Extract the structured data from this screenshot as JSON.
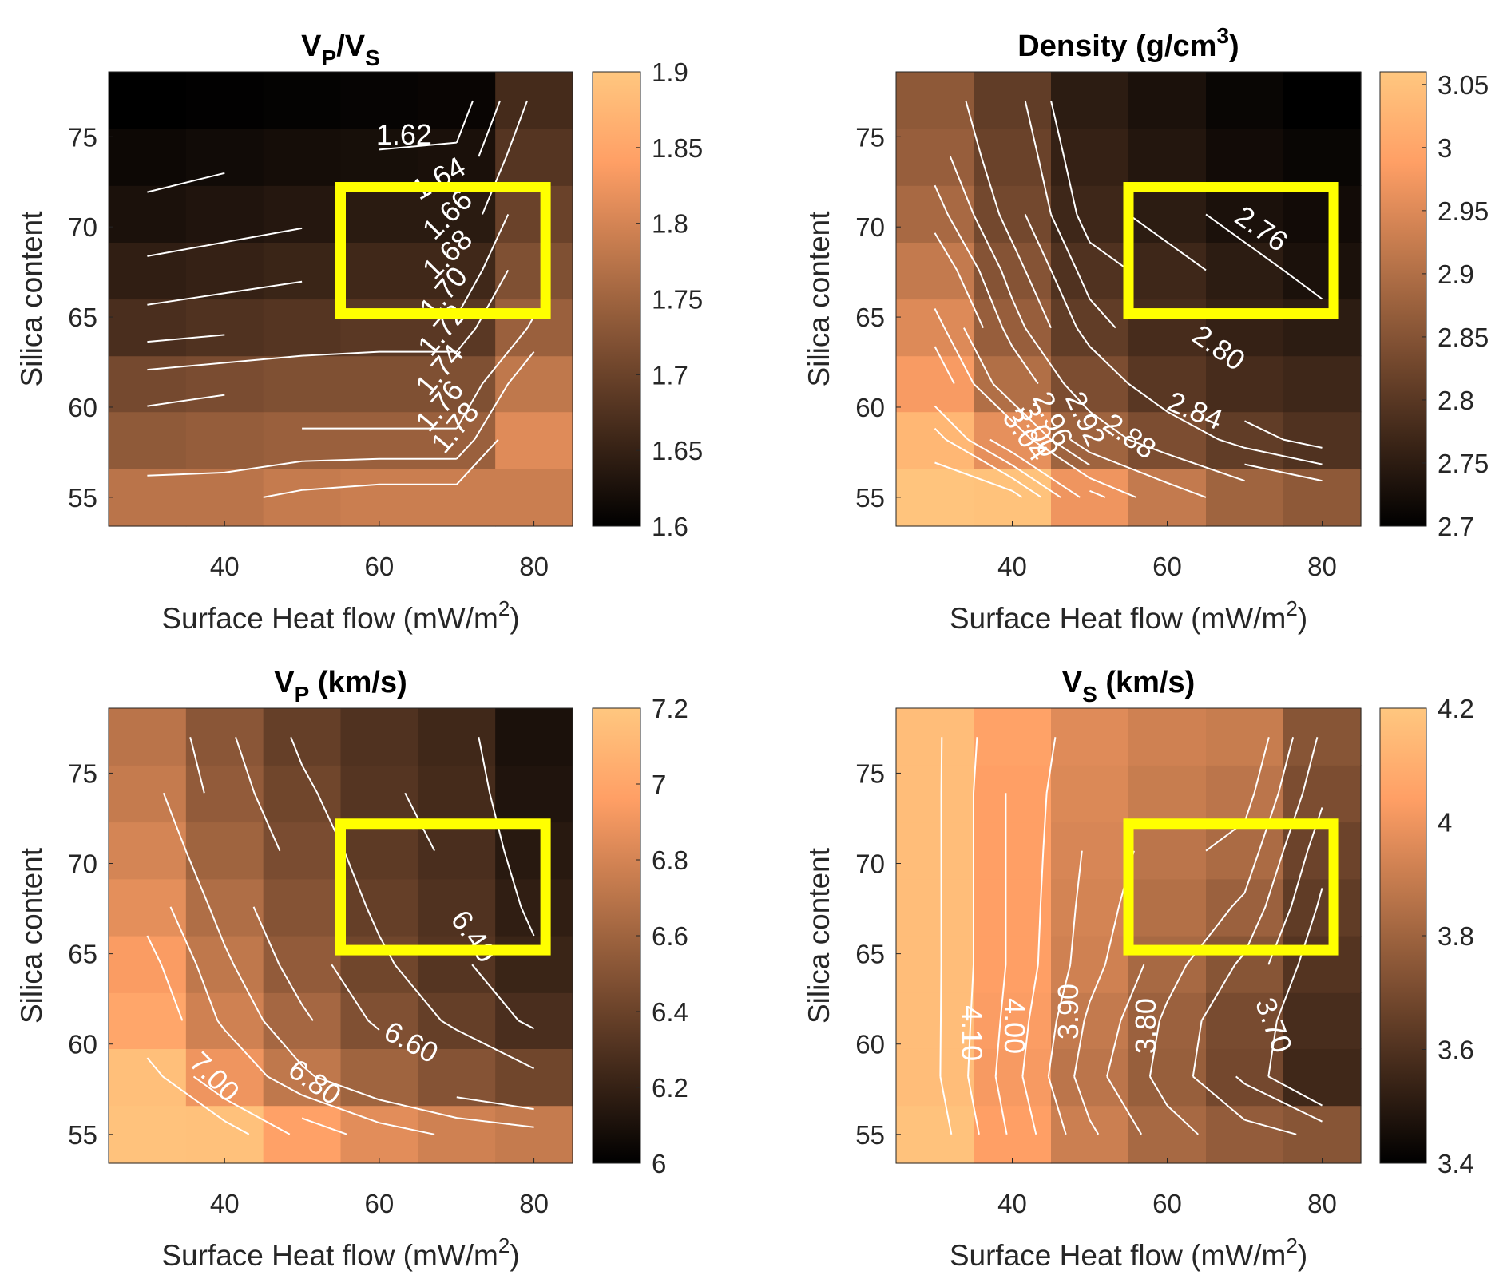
{
  "figure": {
    "colormap": "copper",
    "highlight_color": "#FFFF00",
    "contour_color": "#FFFFFF"
  },
  "chart_data": [
    {
      "id": "vpvs",
      "type": "heatmap",
      "title": "V",
      "title_parts": [
        {
          "t": "V"
        },
        {
          "t": "P",
          "sub": true
        },
        {
          "t": "/V"
        },
        {
          "t": "S",
          "sub": true
        }
      ],
      "xlabel": "Surface Heat flow (mW/m",
      "xlabel_sup": "2",
      "xlabel_end": ")",
      "ylabel": "Silica content",
      "x": [
        30,
        40,
        50,
        60,
        70,
        80
      ],
      "y": [
        55,
        58.2,
        61.3,
        64.4,
        67.6,
        70.7,
        73.9,
        77
      ],
      "xlim": [
        25,
        85
      ],
      "ylim": [
        53.4,
        78.6
      ],
      "xticks": [
        40,
        60,
        80
      ],
      "yticks": [
        55,
        60,
        65,
        70,
        75
      ],
      "clim": [
        1.6,
        1.9
      ],
      "cticks": [
        "1.6",
        "1.65",
        "1.7",
        "1.75",
        "1.8",
        "1.85",
        "1.9"
      ],
      "cticks_values": [
        1.6,
        1.65,
        1.7,
        1.75,
        1.8,
        1.85,
        1.9
      ],
      "values": [
        [
          1.775,
          1.775,
          1.785,
          1.79,
          1.79,
          1.79
        ],
        [
          1.735,
          1.74,
          1.745,
          1.745,
          1.745,
          1.81
        ],
        [
          1.71,
          1.715,
          1.72,
          1.72,
          1.72,
          1.78
        ],
        [
          1.67,
          1.675,
          1.68,
          1.685,
          1.685,
          1.745
        ],
        [
          1.645,
          1.65,
          1.655,
          1.66,
          1.66,
          1.72
        ],
        [
          1.625,
          1.63,
          1.635,
          1.64,
          1.64,
          1.7
        ],
        [
          1.612,
          1.616,
          1.62,
          1.622,
          1.624,
          1.68
        ],
        [
          1.6,
          1.602,
          1.604,
          1.606,
          1.608,
          1.665
        ]
      ],
      "contour_levels": [
        1.62,
        1.64,
        1.66,
        1.68,
        1.7,
        1.72,
        1.74,
        1.76,
        1.78
      ],
      "contour_labels": [
        {
          "text": "1.62",
          "x": 63.2,
          "y": 75.0,
          "angle": 0
        },
        {
          "text": "1.64",
          "x": 67.8,
          "y": 72.6,
          "angle": -30
        },
        {
          "text": "1.66",
          "x": 69.0,
          "y": 70.6,
          "angle": -45
        },
        {
          "text": "1.68",
          "x": 69.0,
          "y": 68.4,
          "angle": -45
        },
        {
          "text": "1.70",
          "x": 68.5,
          "y": 66.3,
          "angle": -50
        },
        {
          "text": "1.72",
          "x": 68.3,
          "y": 64.2,
          "angle": -50
        },
        {
          "text": "1.74",
          "x": 68.0,
          "y": 62.0,
          "angle": -50
        },
        {
          "text": "1.76",
          "x": 68.0,
          "y": 60.0,
          "angle": -50
        },
        {
          "text": "1.78",
          "x": 70.0,
          "y": 58.8,
          "angle": -50
        }
      ],
      "highlight_box": {
        "x": [
          55,
          81.5
        ],
        "y": [
          65.2,
          72.2
        ]
      }
    },
    {
      "id": "density",
      "type": "heatmap",
      "title_parts": [
        {
          "t": "Density (g/cm"
        },
        {
          "t": "3",
          "sup": true
        },
        {
          "t": ")"
        }
      ],
      "xlabel": "Surface Heat flow (mW/m",
      "xlabel_sup": "2",
      "xlabel_end": ")",
      "ylabel": "Silica content",
      "x": [
        30,
        40,
        50,
        60,
        70,
        80
      ],
      "y": [
        55,
        58.2,
        61.3,
        64.4,
        67.6,
        70.7,
        73.9,
        77
      ],
      "xlim": [
        25,
        85
      ],
      "ylim": [
        53.4,
        78.6
      ],
      "xticks": [
        40,
        60,
        80
      ],
      "yticks": [
        55,
        60,
        65,
        70,
        75
      ],
      "clim": [
        2.7,
        3.06
      ],
      "cticks": [
        "2.7",
        "2.75",
        "2.8",
        "2.85",
        "2.9",
        "2.95",
        "3",
        "3.05"
      ],
      "cticks_values": [
        2.7,
        2.75,
        2.8,
        2.85,
        2.9,
        2.95,
        3.0,
        3.05
      ],
      "values": [
        [
          3.055,
          3.05,
          2.97,
          2.92,
          2.88,
          2.86
        ],
        [
          3.03,
          2.96,
          2.88,
          2.84,
          2.81,
          2.79
        ],
        [
          2.98,
          2.9,
          2.84,
          2.8,
          2.78,
          2.77
        ],
        [
          2.95,
          2.87,
          2.81,
          2.78,
          2.76,
          2.75
        ],
        [
          2.92,
          2.85,
          2.79,
          2.77,
          2.75,
          2.73
        ],
        [
          2.89,
          2.83,
          2.77,
          2.75,
          2.73,
          2.72
        ],
        [
          2.87,
          2.82,
          2.76,
          2.74,
          2.72,
          2.71
        ],
        [
          2.86,
          2.81,
          2.75,
          2.73,
          2.71,
          2.7
        ]
      ],
      "contour_levels": [
        2.72,
        2.74,
        2.76,
        2.78,
        2.8,
        2.82,
        2.84,
        2.86,
        2.88,
        2.9,
        2.92,
        2.94,
        2.96,
        2.98,
        3.0,
        3.02,
        3.04
      ],
      "contour_labels": [
        {
          "text": "2.76",
          "x": 72.0,
          "y": 69.8,
          "angle": 35
        },
        {
          "text": "2.80",
          "x": 66.5,
          "y": 63.2,
          "angle": 35
        },
        {
          "text": "2.84",
          "x": 63.5,
          "y": 59.7,
          "angle": 22
        },
        {
          "text": "2.88",
          "x": 55.0,
          "y": 58.3,
          "angle": 35
        },
        {
          "text": "2.92",
          "x": 49.2,
          "y": 59.3,
          "angle": 65
        },
        {
          "text": "2.96",
          "x": 45.0,
          "y": 59.3,
          "angle": 65
        },
        {
          "text": "3.00",
          "x": 43.2,
          "y": 58.7,
          "angle": 65
        },
        {
          "text": "3.04",
          "x": 41.5,
          "y": 58.4,
          "angle": 55
        }
      ],
      "highlight_box": {
        "x": [
          55,
          81.5
        ],
        "y": [
          65.2,
          72.2
        ]
      }
    },
    {
      "id": "vp",
      "type": "heatmap",
      "title_parts": [
        {
          "t": "V"
        },
        {
          "t": "P",
          "sub": true
        },
        {
          "t": " (km/s)"
        }
      ],
      "xlabel": "Surface Heat flow (mW/m",
      "xlabel_sup": "2",
      "xlabel_end": ")",
      "ylabel": "Silica content",
      "x": [
        30,
        40,
        50,
        60,
        70,
        80
      ],
      "y": [
        55,
        58.2,
        61.3,
        64.4,
        67.6,
        70.7,
        73.9,
        77
      ],
      "xlim": [
        25,
        85
      ],
      "ylim": [
        53.4,
        78.6
      ],
      "xticks": [
        40,
        60,
        80
      ],
      "yticks": [
        55,
        60,
        65,
        70,
        75
      ],
      "clim": [
        6.0,
        7.2
      ],
      "cticks": [
        "6",
        "6.2",
        "6.4",
        "6.6",
        "6.8",
        "7",
        "7.2"
      ],
      "cticks_values": [
        6.0,
        6.2,
        6.4,
        6.6,
        6.8,
        7.0,
        7.2
      ],
      "values": [
        [
          7.17,
          7.16,
          6.97,
          6.85,
          6.78,
          6.74
        ],
        [
          7.15,
          6.9,
          6.72,
          6.6,
          6.5,
          6.42
        ],
        [
          7.0,
          6.78,
          6.62,
          6.48,
          6.38,
          6.28
        ],
        [
          6.94,
          6.72,
          6.55,
          6.42,
          6.32,
          6.22
        ],
        [
          6.86,
          6.66,
          6.5,
          6.38,
          6.3,
          6.18
        ],
        [
          6.8,
          6.6,
          6.46,
          6.35,
          6.28,
          6.15
        ],
        [
          6.74,
          6.55,
          6.42,
          6.32,
          6.26,
          6.12
        ],
        [
          6.7,
          6.52,
          6.38,
          6.3,
          6.24,
          6.1
        ]
      ],
      "contour_levels": [
        6.2,
        6.3,
        6.4,
        6.5,
        6.6,
        6.7,
        6.8,
        6.9,
        7.0,
        7.1
      ],
      "contour_labels": [
        {
          "text": "6.40",
          "x": 72.0,
          "y": 65.9,
          "angle": 55
        },
        {
          "text": "6.60",
          "x": 64.0,
          "y": 60.0,
          "angle": 28
        },
        {
          "text": "6.80",
          "x": 51.5,
          "y": 57.8,
          "angle": 35
        },
        {
          "text": "7.00",
          "x": 38.5,
          "y": 58.1,
          "angle": 45
        }
      ],
      "highlight_box": {
        "x": [
          55,
          81.5
        ],
        "y": [
          65.2,
          72.2
        ]
      }
    },
    {
      "id": "vs",
      "type": "heatmap",
      "title_parts": [
        {
          "t": "V"
        },
        {
          "t": "S",
          "sub": true
        },
        {
          "t": " (km/s)"
        }
      ],
      "xlabel": "Surface Heat flow (mW/m",
      "xlabel_sup": "2",
      "xlabel_end": ")",
      "ylabel": "Silica content",
      "x": [
        30,
        40,
        50,
        60,
        70,
        80
      ],
      "y": [
        55,
        58.2,
        61.3,
        64.4,
        67.6,
        70.7,
        73.9,
        77
      ],
      "xlim": [
        25,
        85
      ],
      "ylim": [
        53.4,
        78.6
      ],
      "xticks": [
        40,
        60,
        80
      ],
      "yticks": [
        55,
        60,
        65,
        70,
        75
      ],
      "clim": [
        3.4,
        4.2
      ],
      "cticks": [
        "3.4",
        "3.6",
        "3.8",
        "4",
        "4.2"
      ],
      "cticks_values": [
        3.4,
        3.6,
        3.8,
        4.0,
        4.2
      ],
      "values": [
        [
          4.18,
          4.04,
          3.91,
          3.82,
          3.77,
          3.74
        ],
        [
          4.16,
          4.02,
          3.87,
          3.78,
          3.69,
          3.56
        ],
        [
          4.16,
          4.03,
          3.89,
          3.79,
          3.7,
          3.58
        ],
        [
          4.16,
          4.04,
          3.92,
          3.82,
          3.74,
          3.61
        ],
        [
          4.16,
          4.04,
          3.93,
          3.85,
          3.79,
          3.64
        ],
        [
          4.16,
          4.04,
          3.94,
          3.87,
          3.83,
          3.67
        ],
        [
          4.16,
          4.04,
          3.95,
          3.9,
          3.87,
          3.71
        ],
        [
          4.16,
          4.05,
          3.96,
          3.92,
          3.9,
          3.74
        ]
      ],
      "contour_levels": [
        3.65,
        3.7,
        3.75,
        3.8,
        3.85,
        3.9,
        3.95,
        4.0,
        4.05,
        4.1,
        4.15
      ],
      "contour_labels": [
        {
          "text": "4.10",
          "x": 34.5,
          "y": 60.6,
          "angle": 90
        },
        {
          "text": "4.00",
          "x": 40.0,
          "y": 61.0,
          "angle": 90
        },
        {
          "text": "3.90",
          "x": 47.5,
          "y": 61.8,
          "angle": -90
        },
        {
          "text": "3.80",
          "x": 57.5,
          "y": 61.0,
          "angle": -90
        },
        {
          "text": "3.70",
          "x": 73.5,
          "y": 61.0,
          "angle": 70
        }
      ],
      "highlight_box": {
        "x": [
          55,
          81.5
        ],
        "y": [
          65.2,
          72.2
        ]
      }
    }
  ]
}
